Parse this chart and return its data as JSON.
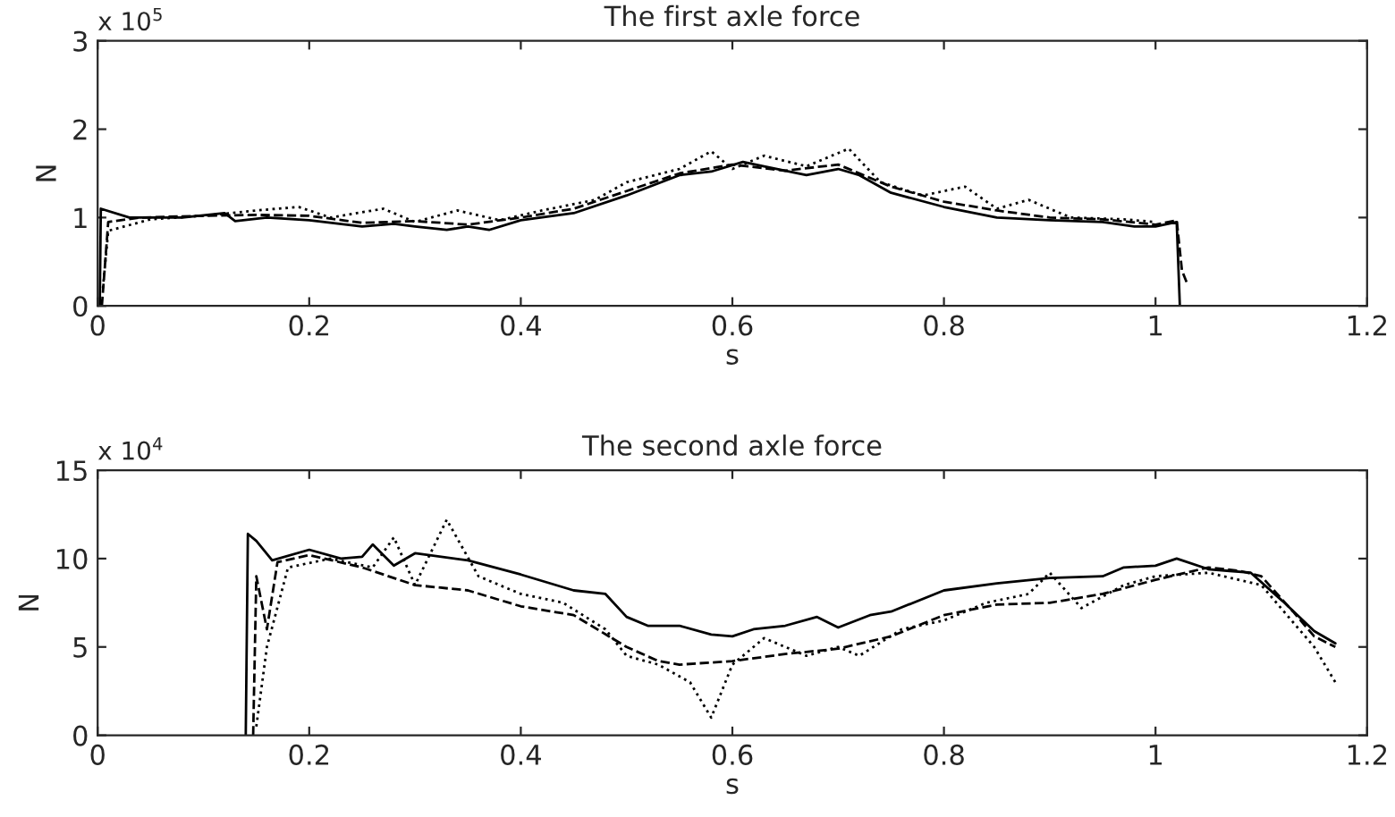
{
  "chart_data": [
    {
      "type": "line",
      "title": "The first axle force",
      "xlabel": "s",
      "ylabel": "N",
      "annotations": [
        "x 10$^{5}$"
      ],
      "xlim": [
        0,
        1.2
      ],
      "xticks": [
        0,
        0.2,
        0.4,
        0.6,
        0.8,
        1,
        1.2
      ],
      "ylim": [
        0,
        3
      ],
      "yticks": [
        0,
        1,
        2,
        3
      ],
      "legend": false,
      "series": [
        {
          "color": "#000000",
          "line_style": "solid",
          "x": [
            0.002,
            0.003,
            0.03,
            0.08,
            0.12,
            0.13,
            0.16,
            0.2,
            0.25,
            0.28,
            0.3,
            0.33,
            0.35,
            0.37,
            0.4,
            0.45,
            0.5,
            0.55,
            0.58,
            0.61,
            0.63,
            0.67,
            0.7,
            0.72,
            0.75,
            0.8,
            0.85,
            0.9,
            0.95,
            0.98,
            1.0,
            1.02,
            1.023
          ],
          "values": [
            0,
            1.1,
            1.0,
            1.0,
            1.05,
            0.96,
            1.0,
            0.97,
            0.9,
            0.93,
            0.9,
            0.86,
            0.9,
            0.86,
            0.97,
            1.05,
            1.25,
            1.48,
            1.52,
            1.63,
            1.58,
            1.48,
            1.55,
            1.48,
            1.28,
            1.12,
            1.0,
            0.97,
            0.95,
            0.9,
            0.9,
            0.95,
            0
          ]
        },
        {
          "color": "#000000",
          "line_style": "dashed",
          "x": [
            0.004,
            0.01,
            0.04,
            0.1,
            0.15,
            0.2,
            0.25,
            0.3,
            0.35,
            0.4,
            0.45,
            0.5,
            0.55,
            0.6,
            0.65,
            0.7,
            0.75,
            0.8,
            0.85,
            0.9,
            0.95,
            1.0,
            1.02,
            1.025,
            1.03
          ],
          "values": [
            0,
            0.95,
            1.0,
            1.02,
            1.03,
            1.02,
            0.94,
            0.96,
            0.92,
            1.0,
            1.1,
            1.3,
            1.5,
            1.6,
            1.53,
            1.6,
            1.35,
            1.18,
            1.08,
            1.0,
            0.98,
            0.92,
            0.97,
            0.4,
            0.25
          ]
        },
        {
          "color": "#000000",
          "line_style": "dotted",
          "x": [
            0.005,
            0.01,
            0.05,
            0.1,
            0.15,
            0.19,
            0.22,
            0.27,
            0.3,
            0.34,
            0.38,
            0.42,
            0.47,
            0.5,
            0.55,
            0.58,
            0.6,
            0.63,
            0.67,
            0.71,
            0.74,
            0.78,
            0.82,
            0.85,
            0.88,
            0.92,
            0.97,
            1.0
          ],
          "values": [
            0.2,
            0.85,
            0.98,
            1.02,
            1.08,
            1.12,
            1.0,
            1.1,
            0.95,
            1.08,
            0.97,
            1.08,
            1.2,
            1.4,
            1.55,
            1.75,
            1.55,
            1.7,
            1.58,
            1.78,
            1.4,
            1.25,
            1.35,
            1.1,
            1.2,
            1.0,
            0.98,
            0.95
          ]
        }
      ]
    },
    {
      "type": "line",
      "title": "The second axle force",
      "xlabel": "s",
      "ylabel": "N",
      "annotations": [
        "x 10$^{4}$"
      ],
      "xlim": [
        0,
        1.2
      ],
      "xticks": [
        0,
        0.2,
        0.4,
        0.6,
        0.8,
        1,
        1.2
      ],
      "ylim": [
        0,
        15
      ],
      "yticks": [
        0,
        5,
        10,
        15
      ],
      "legend": false,
      "series": [
        {
          "color": "#000000",
          "line_style": "solid",
          "x": [
            0.14,
            0.142,
            0.15,
            0.165,
            0.2,
            0.23,
            0.25,
            0.26,
            0.28,
            0.3,
            0.35,
            0.4,
            0.45,
            0.48,
            0.5,
            0.52,
            0.55,
            0.58,
            0.6,
            0.62,
            0.65,
            0.68,
            0.7,
            0.73,
            0.75,
            0.8,
            0.85,
            0.9,
            0.95,
            0.97,
            1.0,
            1.02,
            1.05,
            1.07,
            1.09,
            1.12,
            1.15,
            1.17
          ],
          "values": [
            0,
            11.4,
            11.0,
            9.9,
            10.5,
            10.0,
            10.1,
            10.8,
            9.6,
            10.3,
            9.9,
            9.1,
            8.2,
            8.0,
            6.7,
            6.2,
            6.2,
            5.7,
            5.6,
            6.0,
            6.2,
            6.7,
            6.1,
            6.8,
            7.0,
            8.2,
            8.6,
            8.9,
            9.0,
            9.5,
            9.6,
            10.0,
            9.4,
            9.3,
            9.2,
            7.6,
            5.9,
            5.2
          ]
        },
        {
          "color": "#000000",
          "line_style": "dashed",
          "x": [
            0.147,
            0.15,
            0.16,
            0.17,
            0.2,
            0.25,
            0.3,
            0.35,
            0.4,
            0.45,
            0.5,
            0.53,
            0.55,
            0.6,
            0.65,
            0.7,
            0.75,
            0.8,
            0.85,
            0.9,
            0.95,
            1.0,
            1.05,
            1.08,
            1.1,
            1.13,
            1.15,
            1.17
          ],
          "values": [
            0,
            9.0,
            6.0,
            9.8,
            10.2,
            9.5,
            8.5,
            8.2,
            7.3,
            6.8,
            5.0,
            4.2,
            4.0,
            4.2,
            4.6,
            4.9,
            5.6,
            6.8,
            7.4,
            7.5,
            8.0,
            8.8,
            9.5,
            9.3,
            9.0,
            7.0,
            5.6,
            5.0
          ]
        },
        {
          "color": "#000000",
          "line_style": "dotted",
          "x": [
            0.15,
            0.16,
            0.18,
            0.22,
            0.26,
            0.28,
            0.3,
            0.33,
            0.36,
            0.4,
            0.44,
            0.48,
            0.5,
            0.53,
            0.56,
            0.58,
            0.6,
            0.63,
            0.67,
            0.7,
            0.72,
            0.76,
            0.8,
            0.84,
            0.88,
            0.9,
            0.93,
            0.97,
            1.0,
            1.05,
            1.1,
            1.15,
            1.17
          ],
          "values": [
            0.5,
            5.0,
            9.5,
            10.0,
            9.5,
            11.2,
            8.5,
            12.2,
            9.0,
            8.0,
            7.5,
            6.0,
            4.5,
            4.0,
            3.0,
            1.0,
            4.0,
            5.5,
            4.5,
            5.0,
            4.5,
            6.0,
            6.5,
            7.5,
            8.0,
            9.2,
            7.2,
            8.5,
            9.0,
            9.2,
            8.5,
            5.0,
            3.0
          ]
        }
      ]
    }
  ]
}
